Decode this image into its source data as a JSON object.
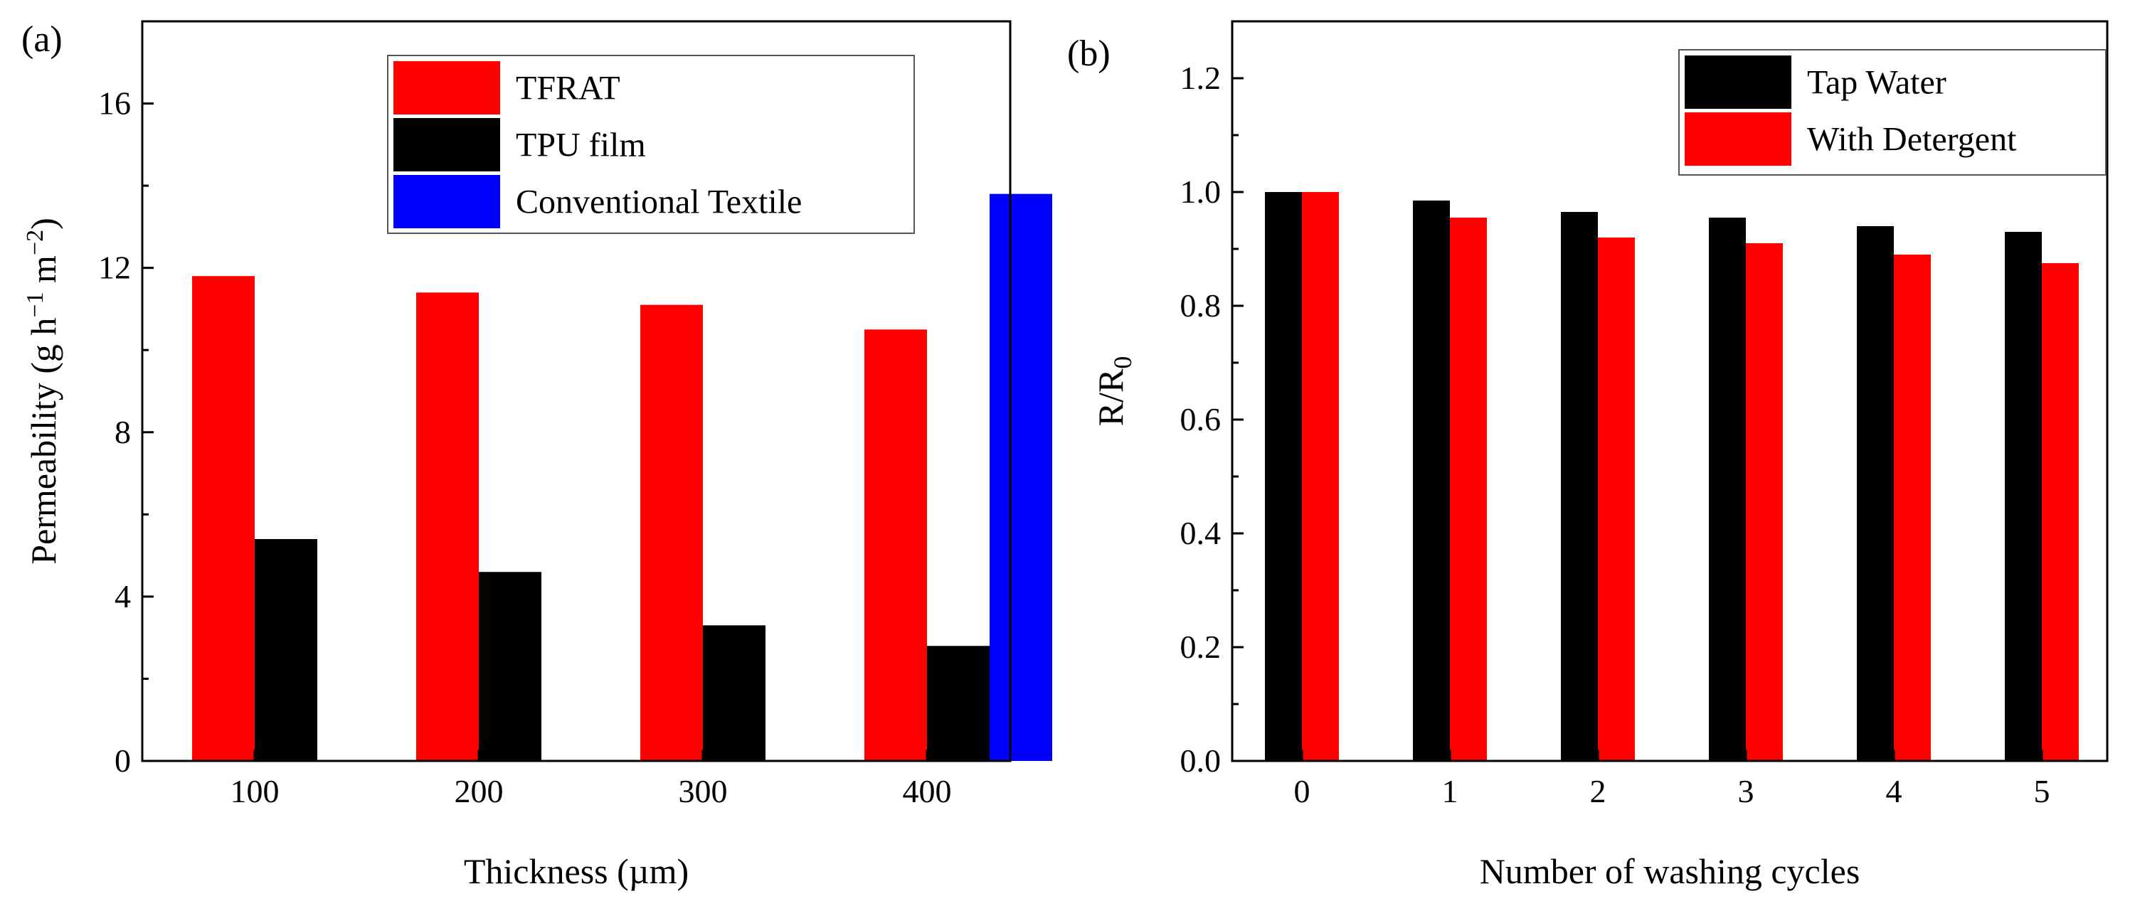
{
  "chart_data": [
    {
      "type": "bar",
      "panel_label": "(a)",
      "title": "",
      "xlabel": "Thickness (µm)",
      "ylabel": {
        "prefix": "Permeability (g h",
        "sup1": "−1",
        "mid": " m",
        "sup2": "−2",
        "suffix": ")",
        "text": "Permeability (g h⁻¹ m⁻²)"
      },
      "categories": [
        "100",
        "200",
        "300",
        "400"
      ],
      "ylim": [
        0,
        18
      ],
      "yticks": [
        0,
        4,
        8,
        12,
        16
      ],
      "grid": false,
      "legend_position": "top-right",
      "series": [
        {
          "name": "TFRAT",
          "color": "#ff0000",
          "values": [
            11.8,
            11.4,
            11.1,
            10.5
          ]
        },
        {
          "name": "TPU film",
          "color": "#000000",
          "values": [
            5.4,
            4.6,
            3.3,
            2.8
          ]
        },
        {
          "name": "Conventional Textile",
          "color": "#0000ff",
          "values": [
            null,
            null,
            null,
            13.8
          ]
        }
      ]
    },
    {
      "type": "bar",
      "panel_label": "(b)",
      "title": "",
      "xlabel": "Number of washing cycles",
      "ylabel": {
        "main": "R/R",
        "sub": "0",
        "text": "R/R₀"
      },
      "categories": [
        "0",
        "1",
        "2",
        "3",
        "4",
        "5"
      ],
      "ylim": [
        0,
        1.3
      ],
      "yticks": [
        "0.0",
        "0.2",
        "0.4",
        "0.6",
        "0.8",
        "1.0",
        "1.2"
      ],
      "grid": false,
      "legend_position": "top-right",
      "series": [
        {
          "name": "Tap Water",
          "color": "#000000",
          "values": [
            1.0,
            0.985,
            0.965,
            0.955,
            0.94,
            0.93
          ]
        },
        {
          "name": "With Detergent",
          "color": "#ff0000",
          "values": [
            1.0,
            0.955,
            0.92,
            0.91,
            0.89,
            0.875
          ]
        }
      ]
    }
  ]
}
